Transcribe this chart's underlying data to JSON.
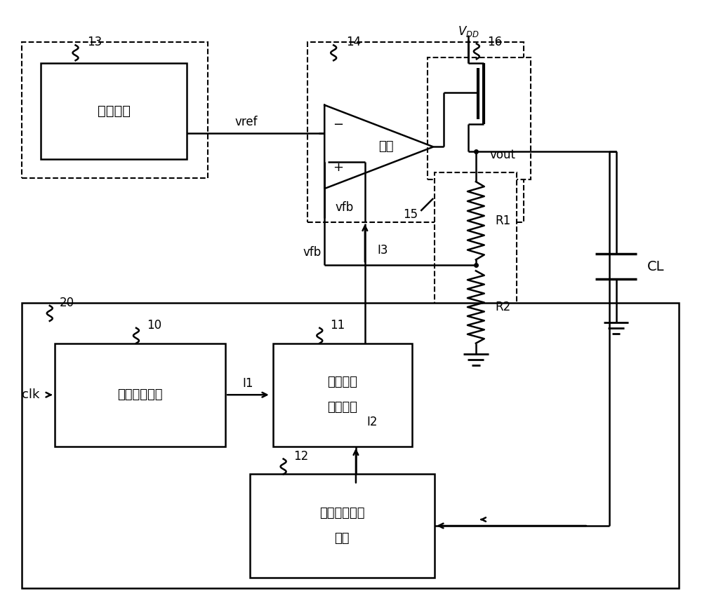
{
  "bg_color": "#ffffff",
  "line_color": "#000000",
  "fig_width": 10.0,
  "fig_height": 8.73,
  "labels": {
    "bandgap_text": "带隙基准",
    "opamp_text": "运放",
    "freq_detect_text": "频率检测电路",
    "bias_gen_line1": "偏置电流",
    "bias_gen_line2": "生成电路",
    "volt_detect_line1": "输出电压检测",
    "volt_detect_line2": "电路",
    "vref": "vref",
    "vfb": "vfb",
    "vout": "vout",
    "r1": "R1",
    "r2": "R2",
    "cl": "CL",
    "clk": "clk",
    "i1": "I1",
    "i2": "I2",
    "i3": "I3",
    "label10": "10",
    "label11": "11",
    "label12": "12",
    "label13": "13",
    "label14": "14",
    "label15": "15",
    "label16": "16",
    "label20": "20"
  }
}
